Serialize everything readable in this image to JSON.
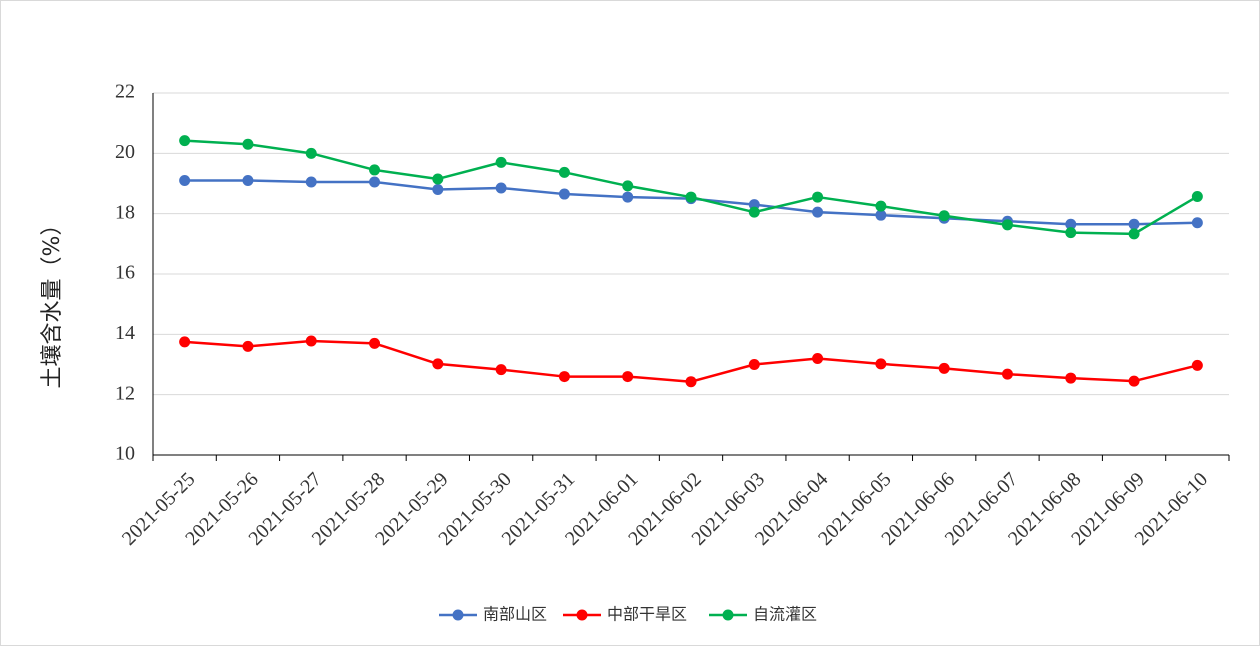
{
  "chart_data": {
    "type": "line",
    "title": "",
    "xlabel": "",
    "ylabel": "土壤含水量（%）",
    "ylim": [
      10,
      22
    ],
    "yticks": [
      10,
      12,
      14,
      16,
      18,
      20,
      22
    ],
    "grid": "horizontal",
    "legend_position": "bottom",
    "categories": [
      "2021-05-25",
      "2021-05-26",
      "2021-05-27",
      "2021-05-28",
      "2021-05-29",
      "2021-05-30",
      "2021-05-31",
      "2021-06-01",
      "2021-06-02",
      "2021-06-03",
      "2021-06-04",
      "2021-06-05",
      "2021-06-06",
      "2021-06-07",
      "2021-06-08",
      "2021-06-09",
      "2021-06-10"
    ],
    "series": [
      {
        "name": "南部山区",
        "color": "#4472c4",
        "values": [
          19.1,
          19.1,
          19.05,
          19.05,
          18.8,
          18.85,
          18.65,
          18.55,
          18.5,
          18.3,
          18.05,
          17.95,
          17.85,
          17.75,
          17.65,
          17.65,
          17.7
        ]
      },
      {
        "name": "中部干旱区",
        "color": "#ff0000",
        "values": [
          13.75,
          13.6,
          13.78,
          13.7,
          13.02,
          12.83,
          12.6,
          12.6,
          12.43,
          13.0,
          13.2,
          13.02,
          12.87,
          12.68,
          12.55,
          12.45,
          12.97
        ]
      },
      {
        "name": "自流灌区",
        "color": "#00b050",
        "values": [
          20.42,
          20.3,
          20.0,
          19.45,
          19.15,
          19.7,
          19.37,
          18.92,
          18.55,
          18.05,
          18.55,
          18.25,
          17.93,
          17.63,
          17.37,
          17.33,
          18.57
        ]
      }
    ]
  }
}
